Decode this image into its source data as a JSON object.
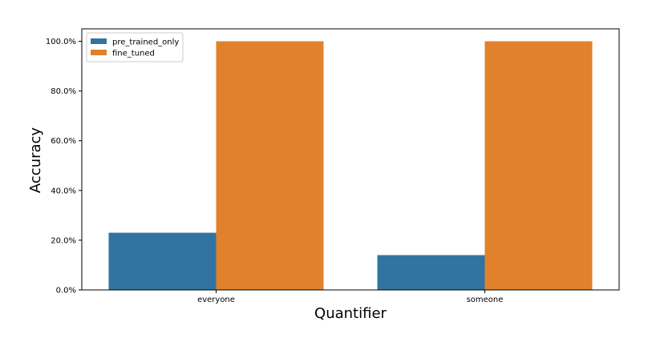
{
  "chart_data": {
    "type": "bar",
    "title": "",
    "xlabel": "Quantifier",
    "ylabel": "Accuracy",
    "categories": [
      "everyone",
      "someone"
    ],
    "series": [
      {
        "name": "pre_trained_only",
        "values": [
          0.23,
          0.14
        ],
        "color": "#3274a1"
      },
      {
        "name": "fine_tuned",
        "values": [
          1.0,
          1.0
        ],
        "color": "#e1812c"
      }
    ],
    "ylim": [
      0,
      1.05
    ],
    "yticks": [
      0,
      0.2,
      0.4,
      0.6,
      0.8,
      1.0
    ],
    "ytick_labels": [
      "0.0%",
      "20.0%",
      "40.0%",
      "60.0%",
      "80.0%",
      "100.0%"
    ],
    "grid": false,
    "legend_position": "top-left"
  }
}
